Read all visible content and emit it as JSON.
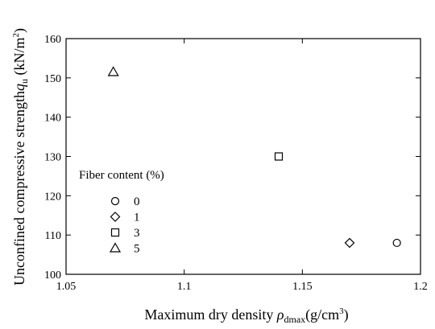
{
  "chart_data": {
    "type": "scatter",
    "xlabel": "Maximum dry density ρdmax(g/cm³)",
    "xlabel_parts": {
      "main": "Maximum dry density ",
      "symbol": "ρ",
      "subscript": "dmax",
      "unit_pre": "(g/cm",
      "unit_sup": "3",
      "unit_post": ")"
    },
    "ylabel": "Unconfined compressive strength qu (kN/m²)",
    "ylabel_parts": {
      "main": "Unconfined compressive strength",
      "symbol": "q",
      "subscript": "u",
      "unit_pre": " (kN/m",
      "unit_sup": "2",
      "unit_post": ")"
    },
    "xlim": [
      1.05,
      1.2
    ],
    "ylim": [
      100,
      160
    ],
    "xticks": [
      1.05,
      1.1,
      1.15,
      1.2
    ],
    "xtick_labels": [
      "1.05",
      "1.1",
      "1.15",
      "1.2"
    ],
    "yticks": [
      100,
      110,
      120,
      130,
      140,
      150,
      160
    ],
    "ytick_labels": [
      "100",
      "110",
      "120",
      "130",
      "140",
      "150",
      "160"
    ],
    "grid": false,
    "legend_placement": "center-left",
    "legend_title": "Fiber content (%)",
    "series": [
      {
        "name": "0",
        "marker": "circle",
        "x": [
          1.19
        ],
        "y": [
          108
        ]
      },
      {
        "name": "1",
        "marker": "diamond",
        "x": [
          1.17
        ],
        "y": [
          108
        ]
      },
      {
        "name": "3",
        "marker": "square",
        "x": [
          1.14
        ],
        "y": [
          130
        ]
      },
      {
        "name": "5",
        "marker": "triangle",
        "x": [
          1.07
        ],
        "y": [
          151.5
        ]
      }
    ]
  }
}
